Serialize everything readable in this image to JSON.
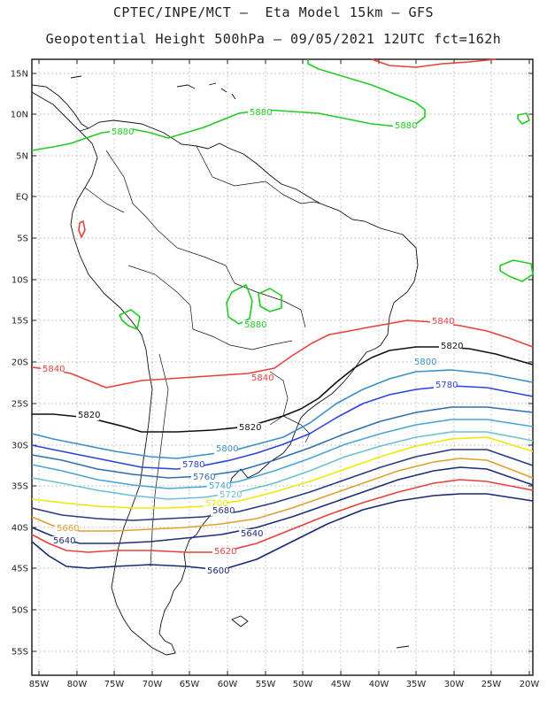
{
  "header": {
    "line1": "CPTEC/INPE/MCT –  Eta Model 15km – GFS",
    "line2": "Geopotential Height 500hPa – 09/05/2021 12UTC fct=162h"
  },
  "axes": {
    "lat_labels": [
      "15N",
      "10N",
      "5N",
      "EQ",
      "5S",
      "10S",
      "15S",
      "20S",
      "25S",
      "30S",
      "35S",
      "40S",
      "45S",
      "50S",
      "55S"
    ],
    "lon_labels": [
      "85W",
      "80W",
      "75W",
      "70W",
      "65W",
      "60W",
      "55W",
      "50W",
      "45W",
      "40W",
      "35W",
      "30W",
      "25W",
      "20W"
    ]
  },
  "contours": [
    {
      "value": "5880",
      "color": "#22cc22",
      "labels": [
        "5880",
        "5880",
        "5880",
        "5880"
      ]
    },
    {
      "value": "5840",
      "color": "#e8403c",
      "labels": [
        "5840",
        "5840",
        "5840"
      ]
    },
    {
      "value": "5820",
      "color": "#111111",
      "labels": [
        "5820",
        "5820",
        "5820"
      ]
    },
    {
      "value": "5800",
      "color": "#3a8fc8",
      "labels": [
        "5800",
        "5800"
      ]
    },
    {
      "value": "5780",
      "color": "#2a44e0",
      "labels": [
        "5780",
        "5780"
      ]
    },
    {
      "value": "5760",
      "color": "#2f6fb0",
      "labels": [
        "5760"
      ]
    },
    {
      "value": "5740",
      "color": "#46a6d6",
      "labels": [
        "5740"
      ]
    },
    {
      "value": "5720",
      "color": "#6cc0d0",
      "labels": [
        "5720"
      ]
    },
    {
      "value": "5700",
      "color": "#f0e800",
      "labels": [
        "5700"
      ]
    },
    {
      "value": "5680",
      "color": "#2a3a80",
      "labels": [
        "5680"
      ]
    },
    {
      "value": "5660",
      "color": "#e0a030",
      "labels": [
        "5660"
      ]
    },
    {
      "value": "5640",
      "color": "#1e2e78",
      "labels": [
        "5640",
        "5640"
      ]
    },
    {
      "value": "5620",
      "color": "#e8403c",
      "labels": [
        "5620"
      ]
    },
    {
      "value": "5600",
      "color": "#1a2a70",
      "labels": [
        "5600"
      ]
    }
  ]
}
